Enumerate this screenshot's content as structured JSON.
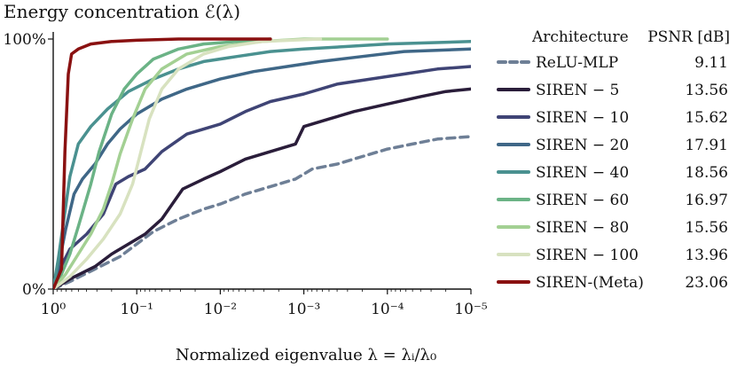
{
  "chart_data": {
    "type": "line",
    "title": "Energy concentration ℰ(λ)",
    "xlabel": "Normalized eigenvalue λ = λᵢ/λ₀",
    "ylabel": "",
    "x_scale": "log-reversed",
    "xlim_exponent": [
      0,
      -5
    ],
    "ylim": [
      0,
      100
    ],
    "x_ticks": [
      {
        "value": 0,
        "label": "10⁰"
      },
      {
        "value": -1,
        "label": "10⁻¹"
      },
      {
        "value": -2,
        "label": "10⁻²"
      },
      {
        "value": -3,
        "label": "10⁻³"
      },
      {
        "value": -4,
        "label": "10⁻⁴"
      },
      {
        "value": -5,
        "label": "10⁻⁵"
      }
    ],
    "y_ticks": [
      {
        "value": 0,
        "label": "0%"
      },
      {
        "value": 100,
        "label": "100%"
      }
    ],
    "legend": {
      "placement": "right",
      "header_name": "Architecture",
      "header_value": "PSNR [dB]"
    },
    "series": [
      {
        "name": "ReLU-MLP",
        "psnr": "9.11",
        "color": "#6e7f96",
        "dashed": true,
        "points": [
          [
            0,
            0
          ],
          [
            -0.2,
            3
          ],
          [
            -0.5,
            8
          ],
          [
            -0.8,
            13
          ],
          [
            -1.0,
            18
          ],
          [
            -1.2,
            23
          ],
          [
            -1.5,
            28
          ],
          [
            -1.8,
            32
          ],
          [
            -2.0,
            34
          ],
          [
            -2.3,
            38
          ],
          [
            -2.6,
            41
          ],
          [
            -2.9,
            44
          ],
          [
            -3.1,
            48
          ],
          [
            -3.4,
            50
          ],
          [
            -3.7,
            53
          ],
          [
            -4.0,
            56
          ],
          [
            -4.3,
            58
          ],
          [
            -4.6,
            60
          ],
          [
            -5.0,
            61
          ]
        ]
      },
      {
        "name": "SIREN − 5",
        "psnr": "13.56",
        "color": "#2a1d3a",
        "dashed": false,
        "points": [
          [
            0,
            0
          ],
          [
            -0.2,
            4
          ],
          [
            -0.5,
            9
          ],
          [
            -0.7,
            14
          ],
          [
            -0.9,
            18
          ],
          [
            -1.1,
            22
          ],
          [
            -1.3,
            28
          ],
          [
            -1.55,
            40
          ],
          [
            -1.8,
            44
          ],
          [
            -2.0,
            47
          ],
          [
            -2.3,
            52
          ],
          [
            -2.6,
            55
          ],
          [
            -2.9,
            58
          ],
          [
            -3.0,
            65
          ],
          [
            -3.3,
            68
          ],
          [
            -3.6,
            71
          ],
          [
            -4.0,
            74
          ],
          [
            -4.4,
            77
          ],
          [
            -4.7,
            79
          ],
          [
            -5.0,
            80
          ]
        ]
      },
      {
        "name": "SIREN − 10",
        "psnr": "15.62",
        "color": "#3f4475",
        "dashed": false,
        "points": [
          [
            0,
            0
          ],
          [
            -0.08,
            8
          ],
          [
            -0.2,
            16
          ],
          [
            -0.4,
            22
          ],
          [
            -0.6,
            30
          ],
          [
            -0.75,
            42
          ],
          [
            -0.9,
            45
          ],
          [
            -1.1,
            48
          ],
          [
            -1.3,
            55
          ],
          [
            -1.6,
            62
          ],
          [
            -2.0,
            66
          ],
          [
            -2.3,
            71
          ],
          [
            -2.6,
            75
          ],
          [
            -3.0,
            78
          ],
          [
            -3.4,
            82
          ],
          [
            -3.8,
            84
          ],
          [
            -4.2,
            86
          ],
          [
            -4.6,
            88
          ],
          [
            -5.0,
            89
          ]
        ]
      },
      {
        "name": "SIREN − 20",
        "psnr": "17.91",
        "color": "#3f6787",
        "dashed": false,
        "points": [
          [
            0,
            0
          ],
          [
            -0.08,
            12
          ],
          [
            -0.15,
            24
          ],
          [
            -0.25,
            38
          ],
          [
            -0.35,
            44
          ],
          [
            -0.5,
            50
          ],
          [
            -0.65,
            58
          ],
          [
            -0.8,
            64
          ],
          [
            -1.0,
            70
          ],
          [
            -1.3,
            76
          ],
          [
            -1.6,
            80
          ],
          [
            -2.0,
            84
          ],
          [
            -2.4,
            87
          ],
          [
            -2.8,
            89
          ],
          [
            -3.2,
            91
          ],
          [
            -3.7,
            93
          ],
          [
            -4.2,
            95
          ],
          [
            -5.0,
            96
          ]
        ]
      },
      {
        "name": "SIREN − 40",
        "psnr": "18.56",
        "color": "#4a9190",
        "dashed": false,
        "points": [
          [
            0,
            0
          ],
          [
            -0.06,
            12
          ],
          [
            -0.12,
            26
          ],
          [
            -0.2,
            45
          ],
          [
            -0.3,
            58
          ],
          [
            -0.45,
            65
          ],
          [
            -0.65,
            72
          ],
          [
            -0.9,
            79
          ],
          [
            -1.2,
            84
          ],
          [
            -1.5,
            88
          ],
          [
            -1.8,
            91
          ],
          [
            -2.2,
            93
          ],
          [
            -2.6,
            95
          ],
          [
            -3.0,
            96
          ],
          [
            -3.5,
            97
          ],
          [
            -4.0,
            98
          ],
          [
            -5.0,
            99
          ]
        ]
      },
      {
        "name": "SIREN − 60",
        "psnr": "16.97",
        "color": "#6bb386",
        "dashed": false,
        "points": [
          [
            0,
            0
          ],
          [
            -0.1,
            6
          ],
          [
            -0.2,
            14
          ],
          [
            -0.3,
            25
          ],
          [
            -0.45,
            42
          ],
          [
            -0.55,
            55
          ],
          [
            -0.7,
            70
          ],
          [
            -0.85,
            80
          ],
          [
            -1.0,
            86
          ],
          [
            -1.2,
            92
          ],
          [
            -1.5,
            96
          ],
          [
            -1.8,
            98
          ],
          [
            -2.2,
            99
          ],
          [
            -2.6,
            100
          ]
        ]
      },
      {
        "name": "SIREN − 80",
        "psnr": "15.56",
        "color": "#a3d093",
        "dashed": false,
        "points": [
          [
            0,
            0
          ],
          [
            -0.15,
            6
          ],
          [
            -0.3,
            14
          ],
          [
            -0.45,
            22
          ],
          [
            -0.6,
            32
          ],
          [
            -0.7,
            42
          ],
          [
            -0.8,
            54
          ],
          [
            -0.95,
            68
          ],
          [
            -1.1,
            80
          ],
          [
            -1.3,
            88
          ],
          [
            -1.6,
            94
          ],
          [
            -2.0,
            97
          ],
          [
            -2.5,
            99
          ],
          [
            -3.0,
            100
          ],
          [
            -4.0,
            100
          ]
        ]
      },
      {
        "name": "SIREN − 100",
        "psnr": "13.96",
        "color": "#d8e2c0",
        "dashed": false,
        "points": [
          [
            0,
            0
          ],
          [
            -0.2,
            5
          ],
          [
            -0.4,
            12
          ],
          [
            -0.6,
            20
          ],
          [
            -0.8,
            30
          ],
          [
            -0.95,
            42
          ],
          [
            -1.05,
            55
          ],
          [
            -1.15,
            68
          ],
          [
            -1.3,
            80
          ],
          [
            -1.5,
            88
          ],
          [
            -1.8,
            94
          ],
          [
            -2.1,
            97
          ],
          [
            -2.5,
            99
          ],
          [
            -3.2,
            100
          ]
        ]
      },
      {
        "name": "SIREN-(Meta)",
        "psnr": "23.06",
        "color": "#8a1111",
        "dashed": false,
        "points": [
          [
            0,
            0
          ],
          [
            -0.1,
            8
          ],
          [
            -0.14,
            55
          ],
          [
            -0.18,
            86
          ],
          [
            -0.22,
            94
          ],
          [
            -0.3,
            96
          ],
          [
            -0.45,
            98
          ],
          [
            -0.7,
            99
          ],
          [
            -1.0,
            99.5
          ],
          [
            -1.5,
            100
          ],
          [
            -2.0,
            100
          ],
          [
            -2.6,
            100
          ]
        ]
      }
    ]
  }
}
